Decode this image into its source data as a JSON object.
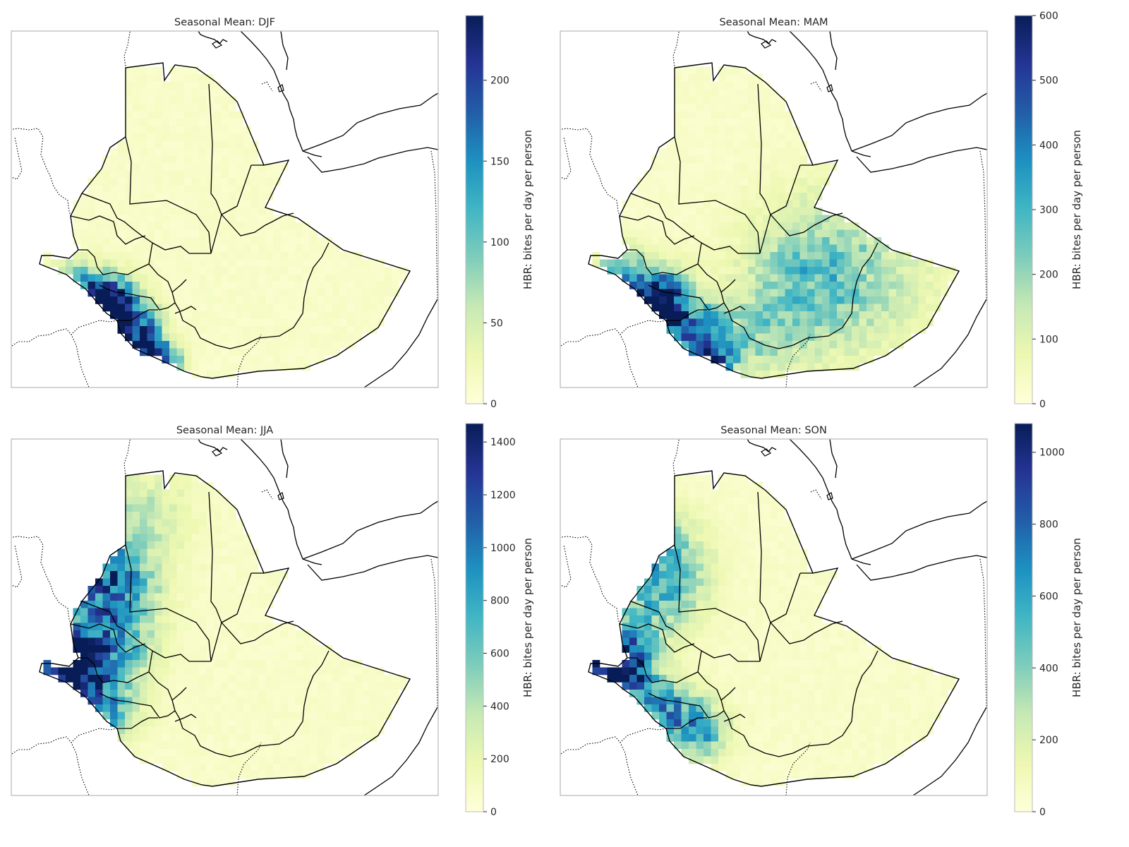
{
  "figure": {
    "panels": [
      {
        "season": "DJF",
        "title": "Seasonal Mean: DJF",
        "colorbar_label": "HBR: bites per day per person",
        "vmin": 0,
        "vmax": 240,
        "ticks": [
          0,
          50,
          100,
          150,
          200
        ]
      },
      {
        "season": "MAM",
        "title": "Seasonal Mean: MAM",
        "colorbar_label": "HBR: bites per day per person",
        "vmin": 0,
        "vmax": 600,
        "ticks": [
          0,
          100,
          200,
          300,
          400,
          500,
          600
        ]
      },
      {
        "season": "JJA",
        "title": "Seasonal Mean: JJA",
        "colorbar_label": "HBR: bites per day per person",
        "vmin": 0,
        "vmax": 1470,
        "ticks": [
          0,
          200,
          400,
          600,
          800,
          1000,
          1200,
          1400
        ]
      },
      {
        "season": "SON",
        "title": "Seasonal Mean: SON",
        "colorbar_label": "HBR: bites per day per person",
        "vmin": 0,
        "vmax": 1080,
        "ticks": [
          0,
          200,
          400,
          600,
          800,
          1000
        ]
      }
    ],
    "colormap": [
      "#ffffd9",
      "#edf8b1",
      "#c7e9b4",
      "#7fcdbb",
      "#41b6c4",
      "#1d91c0",
      "#225ea8",
      "#253494",
      "#081d58"
    ],
    "colors": {
      "country_border": "#000000",
      "coastline": "#000000",
      "frame": "#bdbdbd",
      "land": "#fdfed3"
    }
  }
}
